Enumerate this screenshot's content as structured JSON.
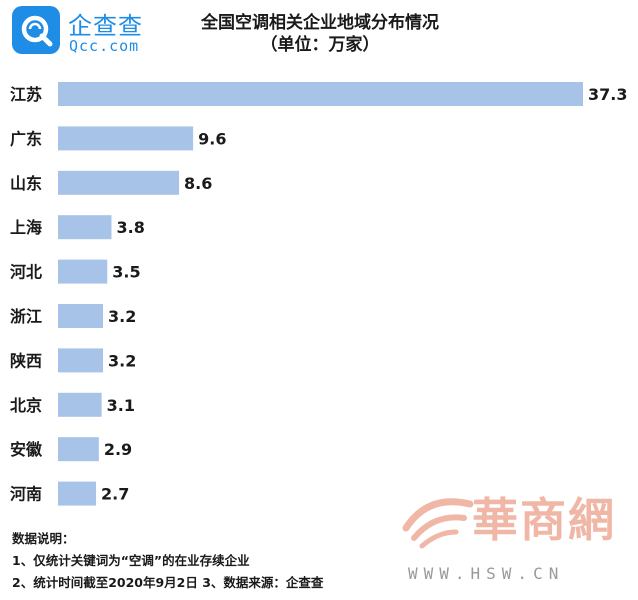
{
  "logo": {
    "cn": "企查查",
    "en": "Qcc.com"
  },
  "title": {
    "line1": "全国空调相关企业地域分布情况",
    "line2": "（单位：万家）"
  },
  "chart_data": {
    "type": "bar",
    "orientation": "horizontal",
    "title": "全国空调相关企业地域分布情况",
    "subtitle": "（单位：万家）",
    "categories": [
      "江苏",
      "广东",
      "山东",
      "上海",
      "河北",
      "浙江",
      "陕西",
      "北京",
      "安徽",
      "河南"
    ],
    "values": [
      37.3,
      9.6,
      8.6,
      3.8,
      3.5,
      3.2,
      3.2,
      3.1,
      2.9,
      2.7
    ],
    "value_labels": [
      "37.3",
      "9.6",
      "8.6",
      "3.8",
      "3.5",
      "3.2",
      "3.2",
      "3.1",
      "2.9",
      "2.7"
    ],
    "bar_color": "#a7c3e8",
    "xlim": [
      0,
      37.3
    ],
    "grid": false,
    "legend": "none"
  },
  "notes": {
    "heading": "数据说明：",
    "line1": "1、仅统计关键词为“空调”的在业存续企业",
    "line2": "2、统计时间截至2020年9月2日  3、数据来源：企查查"
  },
  "watermark": {
    "cn": "華商網",
    "en": "WWW.HSW.CN"
  }
}
